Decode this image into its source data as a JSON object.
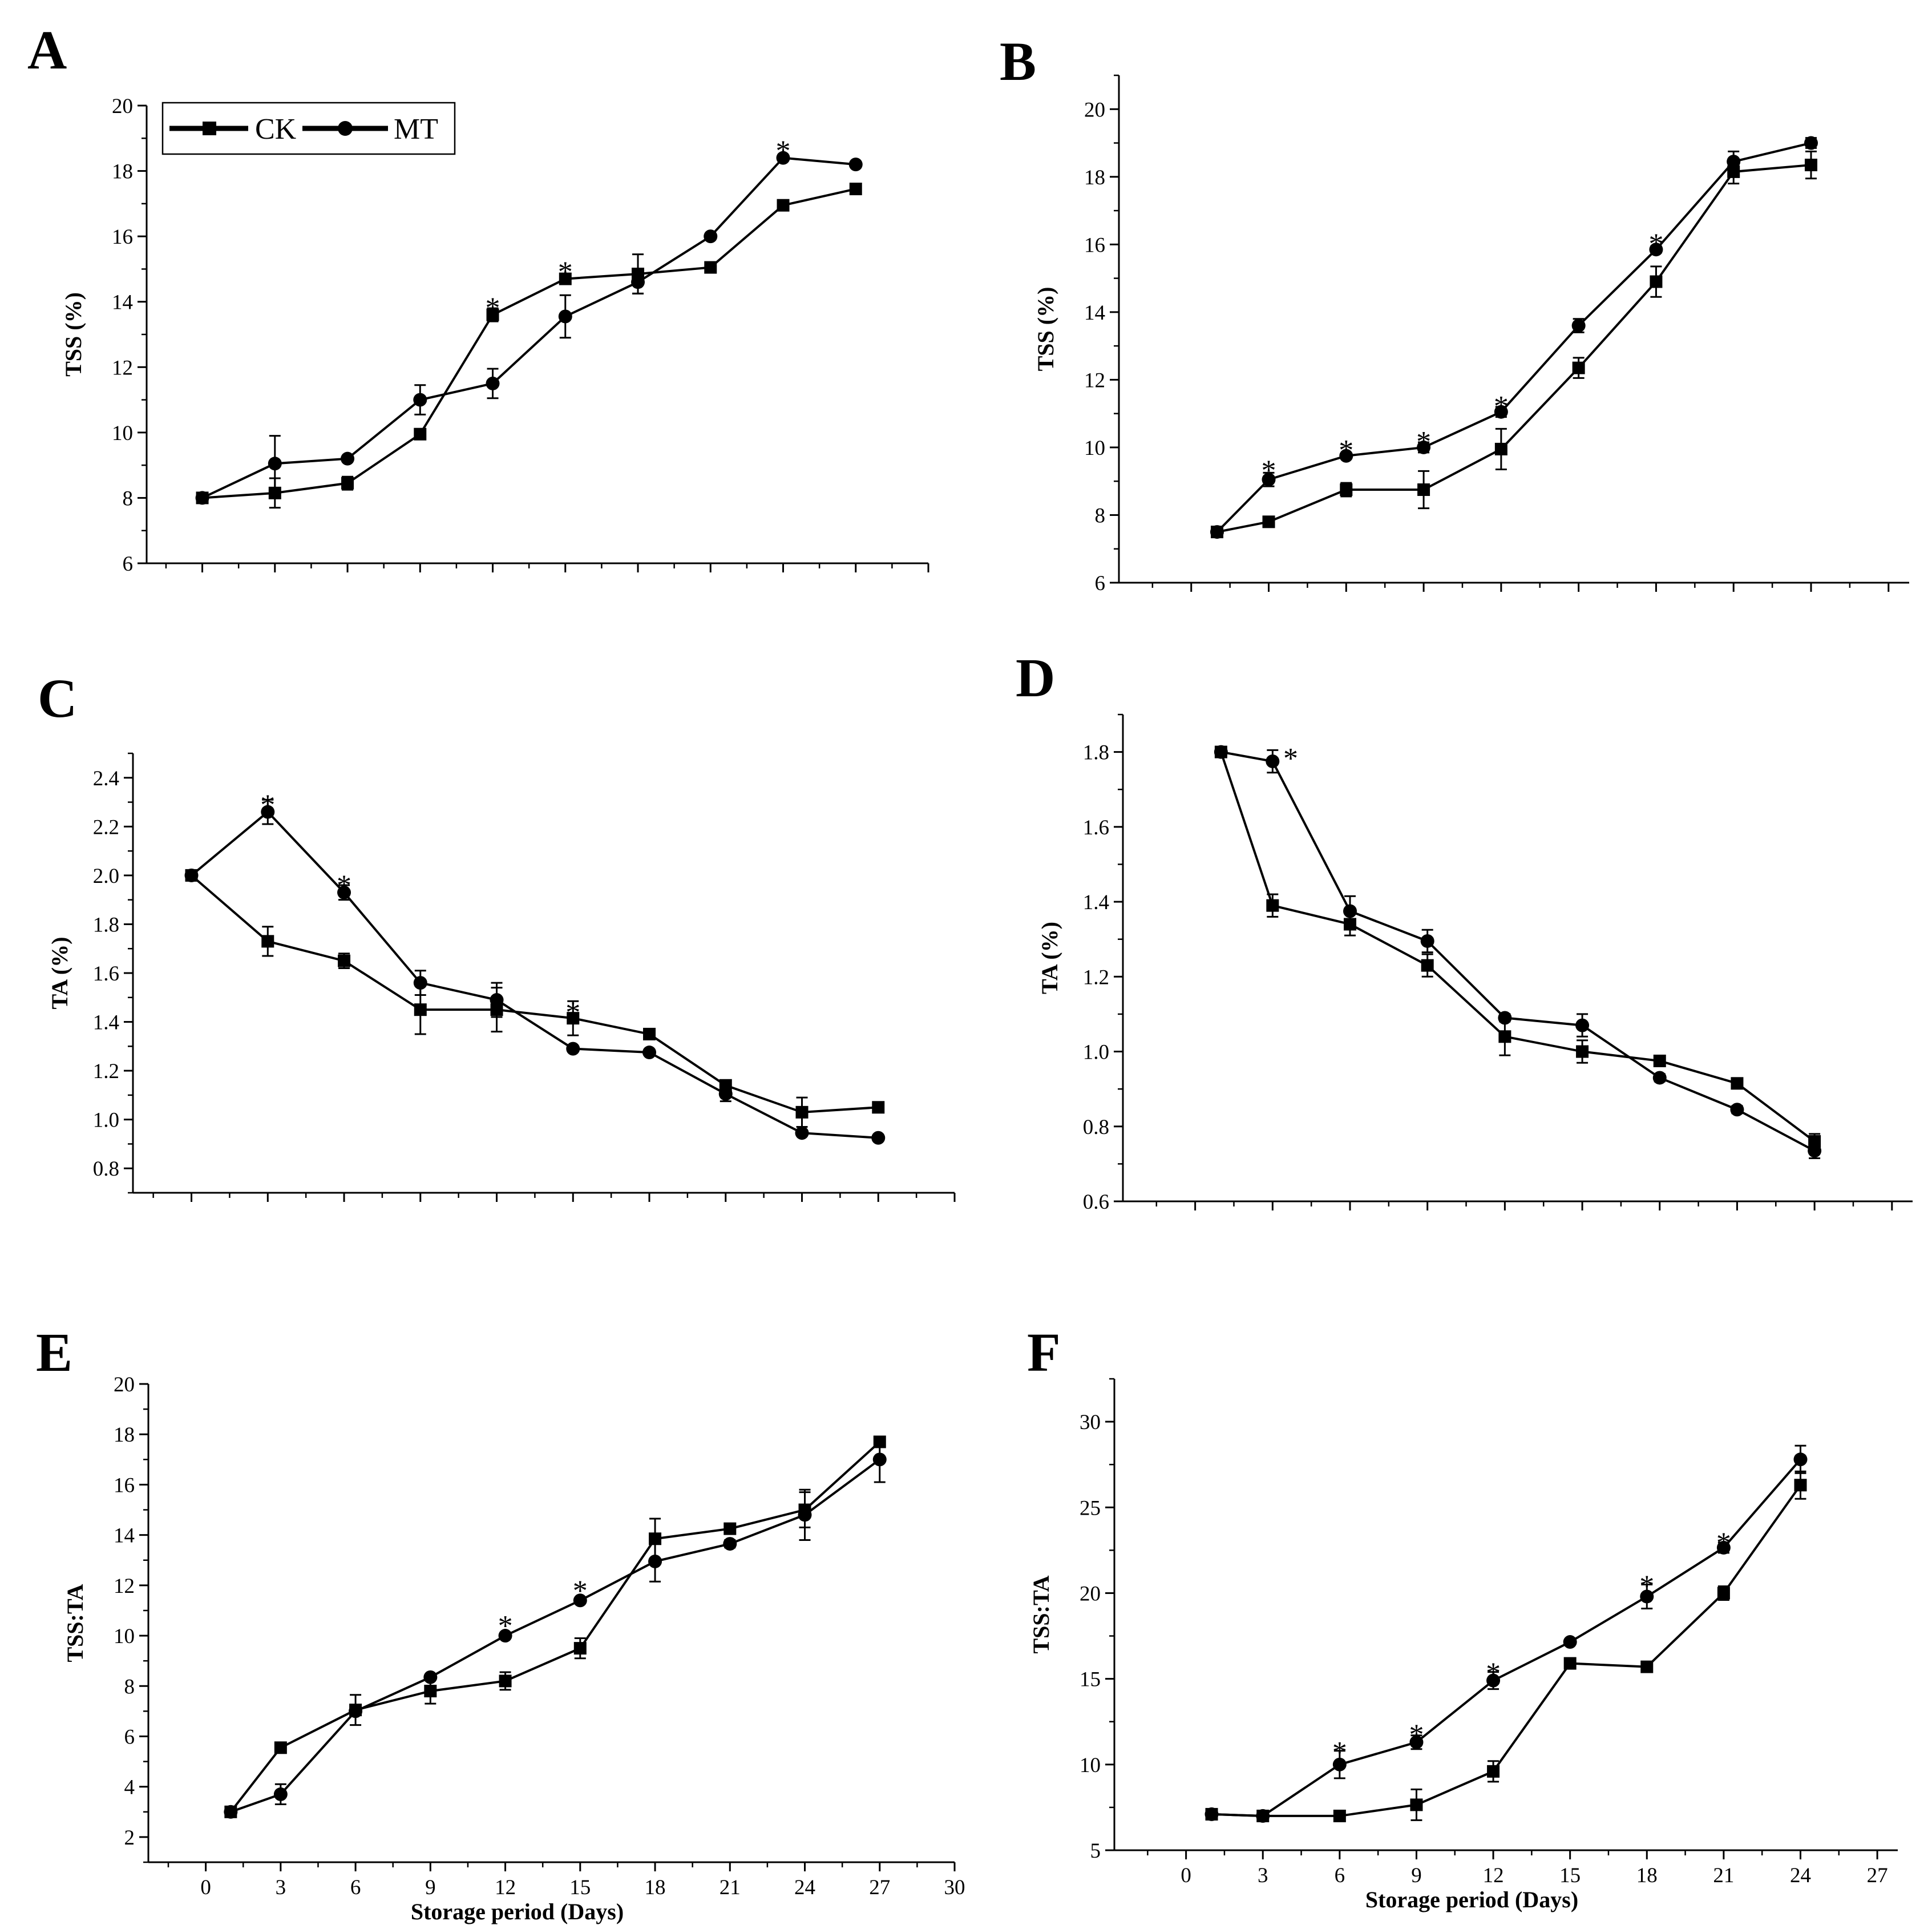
{
  "legend": {
    "series": [
      "CK",
      "MT"
    ]
  },
  "colors": {
    "line": "#000000",
    "background": "#ffffff"
  },
  "chart_data": [
    {
      "panel": "A",
      "type": "line",
      "ylabel": "TSS (%)",
      "xlabel": "",
      "ylim": [
        6,
        20
      ],
      "yticks": [
        6,
        8,
        10,
        12,
        14,
        16,
        18,
        20
      ],
      "xlim": [
        -2.3,
        30
      ],
      "xticks": [
        0,
        3,
        6,
        9,
        12,
        15,
        18,
        21,
        24,
        27,
        30
      ],
      "xtick_labels": [],
      "legend": "top-left",
      "series": [
        {
          "name": "CK",
          "marker": "square",
          "x": [
            0,
            3,
            6,
            9,
            12,
            15,
            18,
            21,
            24,
            27
          ],
          "values": [
            8.0,
            8.15,
            8.45,
            9.95,
            13.6,
            14.7,
            14.85,
            15.05,
            16.95,
            17.45
          ],
          "err": [
            0.05,
            0.45,
            0.2,
            0.05,
            0.2,
            0.15,
            0.6,
            0.05,
            0.1,
            0.05
          ]
        },
        {
          "name": "MT",
          "marker": "circle",
          "x": [
            0,
            3,
            6,
            9,
            12,
            15,
            18,
            21,
            24,
            27
          ],
          "values": [
            8.0,
            9.05,
            9.2,
            11.0,
            11.5,
            13.55,
            14.6,
            16.0,
            18.4,
            18.2
          ],
          "err": [
            0.05,
            0.85,
            0.05,
            0.45,
            0.45,
            0.65,
            0.35,
            0.05,
            0.05,
            0.05
          ]
        }
      ],
      "significance": [
        {
          "x": 12,
          "y": 13.9
        },
        {
          "x": 15,
          "y": 15.0
        },
        {
          "x": 24,
          "y": 18.7
        }
      ]
    },
    {
      "panel": "B",
      "type": "line",
      "ylabel": "TSS (%)",
      "xlabel": "",
      "ylim": [
        6,
        21
      ],
      "yticks": [
        6,
        8,
        10,
        12,
        14,
        16,
        18,
        20
      ],
      "xlim": [
        -2.8,
        27.8
      ],
      "xticks": [
        0,
        3,
        6,
        9,
        12,
        15,
        18,
        21,
        24,
        27
      ],
      "xtick_labels": [],
      "series": [
        {
          "name": "CK",
          "marker": "square",
          "x": [
            1,
            3,
            6,
            9,
            12,
            15,
            18,
            21,
            24
          ],
          "values": [
            7.5,
            7.8,
            8.75,
            8.75,
            9.95,
            12.35,
            14.9,
            18.15,
            18.35
          ],
          "err": [
            0.05,
            0.15,
            0.2,
            0.55,
            0.6,
            0.3,
            0.45,
            0.35,
            0.4
          ]
        },
        {
          "name": "MT",
          "marker": "circle",
          "x": [
            1,
            3,
            6,
            9,
            12,
            15,
            18,
            21,
            24
          ],
          "values": [
            7.5,
            9.05,
            9.75,
            10.0,
            11.05,
            13.6,
            15.85,
            18.45,
            19.0
          ],
          "err": [
            0.05,
            0.2,
            0.05,
            0.15,
            0.15,
            0.2,
            0.1,
            0.3,
            0.15
          ]
        }
      ],
      "significance": [
        {
          "x": 3,
          "y": 9.4
        },
        {
          "x": 6,
          "y": 10.0
        },
        {
          "x": 9,
          "y": 10.25
        },
        {
          "x": 12,
          "y": 11.3
        },
        {
          "x": 18,
          "y": 16.1
        }
      ]
    },
    {
      "panel": "C",
      "type": "line",
      "ylabel": "TA (%)",
      "xlabel": "",
      "ylim": [
        0.7,
        2.5
      ],
      "yticks": [
        0.8,
        1.0,
        1.2,
        1.4,
        1.6,
        1.8,
        2.0,
        2.2,
        2.4
      ],
      "xlim": [
        -2.3,
        30
      ],
      "xticks": [
        0,
        3,
        6,
        9,
        12,
        15,
        18,
        21,
        24,
        27,
        30
      ],
      "xtick_labels": [],
      "series": [
        {
          "name": "CK",
          "marker": "square",
          "x": [
            0,
            3,
            6,
            9,
            12,
            15,
            18,
            21,
            24,
            27
          ],
          "values": [
            2.0,
            1.73,
            1.65,
            1.45,
            1.45,
            1.415,
            1.35,
            1.14,
            1.03,
            1.05
          ],
          "err": [
            0.01,
            0.06,
            0.03,
            0.1,
            0.09,
            0.07,
            0.01,
            0.02,
            0.06,
            0.01
          ]
        },
        {
          "name": "MT",
          "marker": "circle",
          "x": [
            0,
            3,
            6,
            9,
            12,
            15,
            18,
            21,
            24,
            27
          ],
          "values": [
            2.0,
            2.26,
            1.93,
            1.56,
            1.49,
            1.29,
            1.275,
            1.105,
            0.945,
            0.925
          ],
          "err": [
            0.01,
            0.05,
            0.03,
            0.05,
            0.07,
            0.01,
            0.01,
            0.03,
            0.01,
            0.01
          ]
        }
      ],
      "significance": [
        {
          "x": 3,
          "y": 2.3
        },
        {
          "x": 6,
          "y": 1.97
        },
        {
          "x": 15,
          "y": 1.45
        }
      ]
    },
    {
      "panel": "D",
      "type": "line",
      "ylabel": "TA (%)",
      "xlabel": "",
      "ylim": [
        0.6,
        1.9
      ],
      "yticks": [
        0.6,
        0.8,
        1.0,
        1.2,
        1.4,
        1.6,
        1.8
      ],
      "xlim": [
        -2.8,
        27.8
      ],
      "xticks": [
        0,
        3,
        6,
        9,
        12,
        15,
        18,
        21,
        24,
        27
      ],
      "xtick_labels": [],
      "series": [
        {
          "name": "CK",
          "marker": "square",
          "x": [
            1,
            3,
            6,
            9,
            12,
            15,
            18,
            21,
            24
          ],
          "values": [
            1.8,
            1.39,
            1.34,
            1.23,
            1.04,
            1.0,
            0.975,
            0.915,
            0.76
          ],
          "err": [
            0.01,
            0.03,
            0.03,
            0.03,
            0.05,
            0.03,
            0.01,
            0.01,
            0.02
          ]
        },
        {
          "name": "MT",
          "marker": "circle",
          "x": [
            1,
            3,
            6,
            9,
            12,
            15,
            18,
            21,
            24
          ],
          "values": [
            1.8,
            1.775,
            1.375,
            1.295,
            1.09,
            1.07,
            0.93,
            0.845,
            0.735
          ],
          "err": [
            0.01,
            0.03,
            0.04,
            0.03,
            0.01,
            0.03,
            0.01,
            0.01,
            0.02
          ]
        }
      ],
      "significance": [
        {
          "x": 3.7,
          "y": 1.79
        }
      ]
    },
    {
      "panel": "E",
      "type": "line",
      "ylabel": "TSS:TA",
      "xlabel": "Storage period (Days)",
      "ylim": [
        1,
        20
      ],
      "yticks": [
        2,
        4,
        6,
        8,
        10,
        12,
        14,
        16,
        18,
        20
      ],
      "xlim": [
        -2.3,
        30
      ],
      "xticks": [
        0,
        3,
        6,
        9,
        12,
        15,
        18,
        21,
        24,
        27,
        30
      ],
      "xtick_labels": [
        "0",
        "3",
        "6",
        "9",
        "12",
        "15",
        "18",
        "21",
        "24",
        "27",
        "30"
      ],
      "series": [
        {
          "name": "CK",
          "marker": "square",
          "x": [
            1,
            3,
            6,
            9,
            12,
            15,
            18,
            21,
            24,
            27
          ],
          "values": [
            3.0,
            5.55,
            7.05,
            7.8,
            8.2,
            9.5,
            13.85,
            14.25,
            15.0,
            17.7
          ],
          "err": [
            0.05,
            0.05,
            0.6,
            0.5,
            0.35,
            0.4,
            0.8,
            0.05,
            0.7,
            0.05
          ]
        },
        {
          "name": "MT",
          "marker": "circle",
          "x": [
            1,
            3,
            6,
            9,
            12,
            15,
            18,
            21,
            24,
            27
          ],
          "values": [
            3.0,
            3.7,
            7.0,
            8.35,
            10.0,
            11.4,
            12.95,
            13.65,
            14.8,
            17.0
          ],
          "err": [
            0.05,
            0.4,
            0.1,
            0.05,
            0.05,
            0.05,
            0.8,
            0.15,
            1.0,
            0.9
          ]
        }
      ],
      "significance": [
        {
          "x": 12,
          "y": 10.5
        },
        {
          "x": 15,
          "y": 11.9
        }
      ]
    },
    {
      "panel": "F",
      "type": "line",
      "ylabel": "TSS:TA",
      "xlabel": "Storage period (Days)",
      "ylim": [
        5,
        32.5
      ],
      "yticks": [
        5,
        10,
        15,
        20,
        25,
        30
      ],
      "xlim": [
        -2.8,
        27.8
      ],
      "xticks": [
        0,
        3,
        6,
        9,
        12,
        15,
        18,
        21,
        24,
        27
      ],
      "xtick_labels": [
        "0",
        "3",
        "6",
        "9",
        "12",
        "15",
        "18",
        "21",
        "24",
        "27"
      ],
      "series": [
        {
          "name": "CK",
          "marker": "square",
          "x": [
            1,
            3,
            6,
            9,
            12,
            15,
            18,
            21,
            24
          ],
          "values": [
            7.1,
            7.0,
            7.0,
            7.65,
            9.6,
            15.9,
            15.7,
            20.0,
            26.3
          ],
          "err": [
            0.1,
            0.1,
            0.1,
            0.9,
            0.6,
            0.1,
            0.1,
            0.4,
            0.8
          ]
        },
        {
          "name": "MT",
          "marker": "circle",
          "x": [
            1,
            3,
            6,
            9,
            12,
            15,
            18,
            21,
            24
          ],
          "values": [
            7.1,
            7.0,
            10.0,
            11.3,
            14.9,
            17.15,
            19.8,
            22.65,
            27.8
          ],
          "err": [
            0.1,
            0.1,
            0.8,
            0.4,
            0.5,
            0.1,
            0.7,
            0.3,
            0.8
          ]
        }
      ],
      "significance": [
        {
          "x": 6,
          "y": 10.9
        },
        {
          "x": 9,
          "y": 11.9
        },
        {
          "x": 12,
          "y": 15.5
        },
        {
          "x": 18,
          "y": 20.6
        },
        {
          "x": 21,
          "y": 23.1
        }
      ]
    }
  ]
}
